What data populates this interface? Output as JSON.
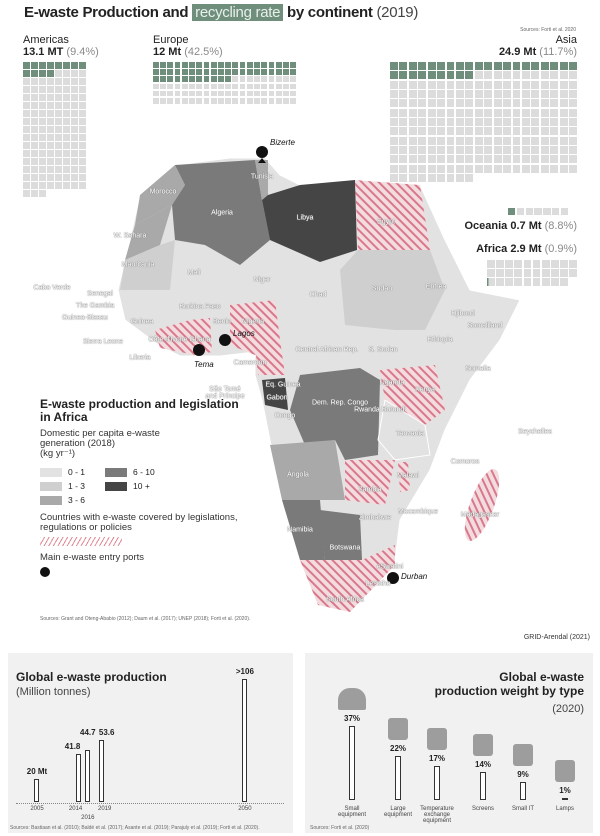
{
  "header": {
    "title_part1": "E-waste Production and",
    "title_highlight": "recycling rate",
    "title_part2": "by continent",
    "title_year": "(2019)",
    "source": "Sources: Forti et al. 2020"
  },
  "continents": [
    {
      "name": "Americas",
      "production": "13.1 MT",
      "rate": "(9.4%)",
      "squares": 131,
      "green": 12,
      "cols": 8
    },
    {
      "name": "Europe",
      "production": "12 Mt",
      "rate": "(42.5%)",
      "squares": 120,
      "green": 51,
      "cols": 20
    },
    {
      "name": "Asia",
      "production": "24.9 Mt",
      "rate": "(11.7%)",
      "squares": 249,
      "green": 29,
      "cols": 20
    },
    {
      "name": "Oceania",
      "production": "0.7 Mt",
      "rate": "(8.8%)",
      "squares": 7,
      "green": 1,
      "cols": 8
    },
    {
      "name": "Africa",
      "production": "2.9 Mt",
      "rate": "(0.9%)",
      "squares": 29,
      "green": 0,
      "cols": 10
    }
  ],
  "map": {
    "countries": [
      "Morocco",
      "Algeria",
      "Libya",
      "Tunisia",
      "Egypt",
      "W. Sahara",
      "Mauritania",
      "Mali",
      "Niger",
      "Chad",
      "Sudan",
      "Eritrea",
      "Djibouti",
      "Somaliland",
      "Ethiopia",
      "Somalia",
      "Cabo Verde",
      "Senegal",
      "The Gambia",
      "Guinea-Bissau",
      "Guinea",
      "Burkina Faso",
      "Benin",
      "Nigeria",
      "Sierra Leone",
      "Liberia",
      "Côte d'Ivoire",
      "Ghana",
      "Cameroon",
      "Central African Rep.",
      "S. Sudan",
      "Eq. Guinea",
      "Gabon",
      "Congo",
      "Dem. Rep. Congo",
      "Uganda",
      "Kenya",
      "Rwanda Burundi",
      "Tanzania",
      "São Tomé and Príncipe",
      "Seychelles",
      "Angola",
      "Zambia",
      "Malawi",
      "Comoros",
      "Mozambique",
      "Madagascar",
      "Zimbabwe",
      "Namibia",
      "Botswana",
      "eSwatini",
      "Lesotho",
      "South Africa"
    ],
    "ports": [
      "Bizerte",
      "Lagos",
      "Tema",
      "Durban"
    ],
    "colors": {
      "0-1": "#e2e2e2",
      "1-3": "#cfcfcf",
      "3-6": "#a9a9a9",
      "6-10": "#7a7a7a",
      "10+": "#454545",
      "hatch": "#e08a96"
    }
  },
  "legend": {
    "title": "E-waste production and legislation in Africa",
    "subtitle1": "Domestic per capita e-waste",
    "subtitle2": "generation (2018)",
    "unit": "(kg yr⁻¹)",
    "classes": [
      "0 - 1",
      "1 - 3",
      "3 - 6",
      "6 - 10",
      "10 +"
    ],
    "legislation": "Countries with e-waste covered by legislations, regulations or policies",
    "ports": "Main e-waste entry ports",
    "sources": "Sources: Grant and Oteng-Ababio (2012); Daum et al. (2017); UNEP (2018); Forti et al. (2020)."
  },
  "credit": "GRID-Arendal (2021)",
  "chart_data": [
    {
      "type": "bar",
      "title": "Global e-waste production",
      "subtitle": "(Million tonnes)",
      "x": [
        2005,
        2014,
        2016,
        2019,
        2050
      ],
      "tick_labels": [
        "2005",
        "2014",
        "2016",
        "2019",
        "2050"
      ],
      "values": [
        20,
        41.8,
        44.7,
        53.6,
        106
      ],
      "data_labels": [
        "20 Mt",
        "41.8",
        "44.7",
        "53.6",
        ">106"
      ],
      "source": "Sources: Bastiaan et al. (2010); Baldé et al. (2017); Asante et al. (2019); Parajuly et al. (2019); Forti et al. (2020)."
    },
    {
      "type": "bar",
      "title": "Global e-waste production weight by type",
      "subtitle": "(2020)",
      "categories": [
        "Small equipment",
        "Large equipment",
        "Temperature exchange equipment",
        "Screens",
        "Small IT",
        "Lamps"
      ],
      "values": [
        37,
        22,
        17,
        14,
        9,
        1
      ],
      "data_labels": [
        "37%",
        "22%",
        "17%",
        "14%",
        "9%",
        "1%"
      ],
      "icons": [
        "iron-icon",
        "fridge-icon",
        "air-conditioner-icon",
        "monitor-icon",
        "phone-icon",
        "desk-lamp-icon"
      ],
      "source": "Sources: Forti et al. (2020)"
    }
  ]
}
